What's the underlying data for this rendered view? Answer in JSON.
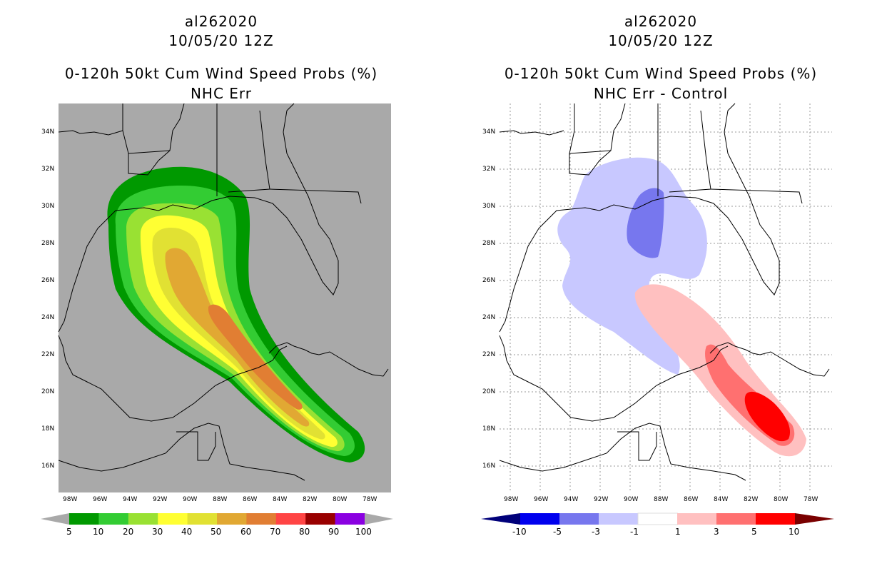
{
  "panels": [
    {
      "storm_id": "al262020",
      "date": "10/05/20 12Z",
      "title": "0-120h 50kt Cum Wind Speed Probs (%)",
      "subtitle": "NHC Err",
      "background": "#a9a9a9",
      "colorbar": {
        "labels": [
          "5",
          "10",
          "20",
          "30",
          "40",
          "50",
          "60",
          "70",
          "80",
          "90",
          "100"
        ],
        "colors": [
          "#009900",
          "#33cc33",
          "#99e133",
          "#ffff33",
          "#e1e133",
          "#e1a833",
          "#e17e33",
          "#ff4444",
          "#990000",
          "#8a00e1"
        ]
      }
    },
    {
      "storm_id": "al262020",
      "date": "10/05/20 12Z",
      "title": "0-120h 50kt Cum Wind Speed Probs (%)",
      "subtitle": "NHC Err - Control",
      "background": "#ffffff",
      "colorbar": {
        "labels": [
          "-10",
          "-5",
          "-3",
          "-1",
          "1",
          "3",
          "5",
          "10"
        ],
        "colors": [
          "#00007a",
          "#0000ee",
          "#7777ee",
          "#c8c8ff",
          "#ffffff",
          "#ffc0c0",
          "#ff7070",
          "#ff0000",
          "#7a0000"
        ]
      }
    }
  ],
  "axes": {
    "lon_labels": [
      "98W",
      "96W",
      "94W",
      "92W",
      "90W",
      "88W",
      "86W",
      "84W",
      "82W",
      "80W",
      "78W"
    ],
    "lat_labels": [
      "34N",
      "32N",
      "30N",
      "28N",
      "26N",
      "24N",
      "22N",
      "20N",
      "18N",
      "16N"
    ]
  }
}
